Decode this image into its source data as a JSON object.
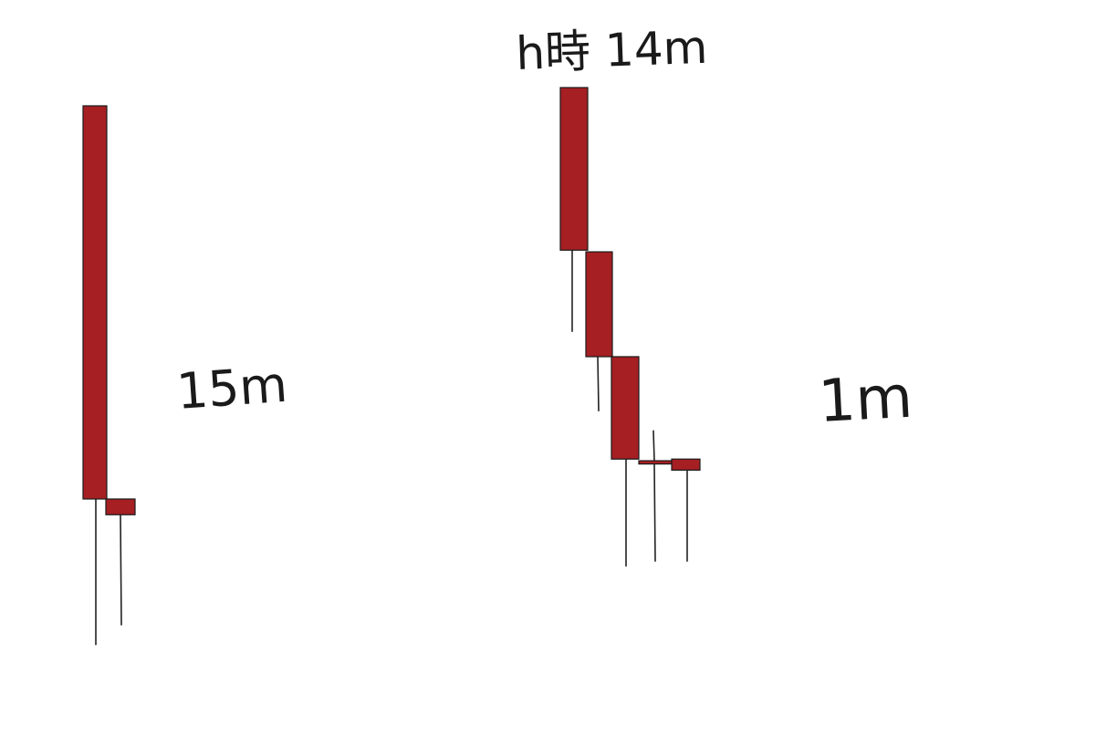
{
  "colors": {
    "background": "#ffffff",
    "candle_fill": "#a51f23",
    "candle_stroke": "#1a1a1a",
    "wick": "#222222",
    "text": "#1a1a1a"
  },
  "chart_data": [
    {
      "type": "candlestick",
      "label": "15m",
      "candles": [
        {
          "open": 1.0,
          "close": 0.0,
          "high": 1.0,
          "low": -0.37
        },
        {
          "open": 0.0,
          "close": -0.04,
          "high": 0.0,
          "low": -0.32
        }
      ]
    },
    {
      "type": "candlestick",
      "label": "1m",
      "candles": [
        {
          "open": 1.0,
          "close": 0.603,
          "high": 1.0,
          "low": 0.405
        },
        {
          "open": 0.599,
          "close": 0.343,
          "high": 0.599,
          "low": 0.211
        },
        {
          "open": 0.343,
          "close": 0.093,
          "high": 0.343,
          "low": -0.168
        },
        {
          "open": 0.089,
          "close": 0.081,
          "high": 0.162,
          "low": -0.156
        },
        {
          "open": 0.093,
          "close": 0.066,
          "high": 0.093,
          "low": -0.156
        }
      ]
    }
  ],
  "annotations": {
    "top_note": "h時 14m"
  }
}
